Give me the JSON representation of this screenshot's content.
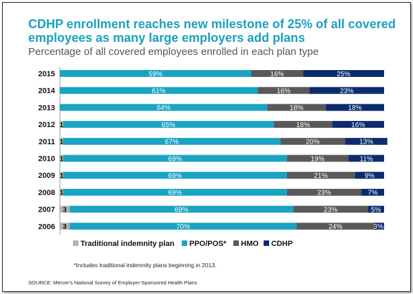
{
  "header": {
    "title_line1": "CDHP enrollment reaches new milestone of 25% of all covered",
    "title_line2": "employees as many large employers add plans",
    "subtitle": "Percentage of all covered employees enrolled in each plan type"
  },
  "colors": {
    "title": "#1ba1bd",
    "subtitle": "#555555",
    "traditional": "#b3b3b3",
    "ppo": "#1aa3c2",
    "hmo": "#595959",
    "cdhp": "#0b2b6e"
  },
  "chart_data": {
    "type": "bar",
    "orientation": "horizontal",
    "stacked": true,
    "title": "CDHP enrollment reaches new milestone of 25% of all covered employees as many large employers add plans",
    "subtitle": "Percentage of all covered employees enrolled in each plan type",
    "categories": [
      "2015",
      "2014",
      "2013",
      "2012",
      "2011",
      "2010",
      "2009",
      "2008",
      "2007",
      "2006"
    ],
    "series": [
      {
        "name": "Traditional indemnity plan",
        "color": "#b3b3b3",
        "values": [
          0,
          0,
          0,
          1,
          1,
          1,
          1,
          1,
          3,
          3
        ],
        "labels": [
          "",
          "",
          "",
          "1",
          "1",
          "1",
          "1",
          "1",
          "3",
          "3"
        ]
      },
      {
        "name": "PPO/POS*",
        "color": "#1aa3c2",
        "values": [
          59,
          61,
          64,
          65,
          67,
          69,
          69,
          69,
          69,
          70
        ],
        "labels": [
          "59%",
          "61%",
          "64%",
          "65%",
          "67%",
          "69%",
          "69%",
          "69%",
          "69%",
          "70%"
        ]
      },
      {
        "name": "HMO",
        "color": "#595959",
        "values": [
          16,
          16,
          18,
          18,
          20,
          19,
          21,
          23,
          23,
          24
        ],
        "labels": [
          "16%",
          "16%",
          "18%",
          "18%",
          "20%",
          "19%",
          "21%",
          "23%",
          "23%",
          "24%"
        ]
      },
      {
        "name": "CDHP",
        "color": "#0b2b6e",
        "values": [
          25,
          23,
          18,
          16,
          13,
          11,
          9,
          7,
          5,
          3
        ],
        "labels": [
          "25%",
          "23%",
          "18%",
          "16%",
          "13%",
          "11%",
          "9%",
          "7%",
          "5%",
          "3%"
        ]
      }
    ],
    "xlim": [
      0,
      100
    ],
    "grid": false,
    "legend": "bottom"
  },
  "footnote": "*Includes traditional indemnity plans beginning in 2013.",
  "source": "SOURCE: Mercer's National Survey of Employer-Sponsored Health Plans"
}
